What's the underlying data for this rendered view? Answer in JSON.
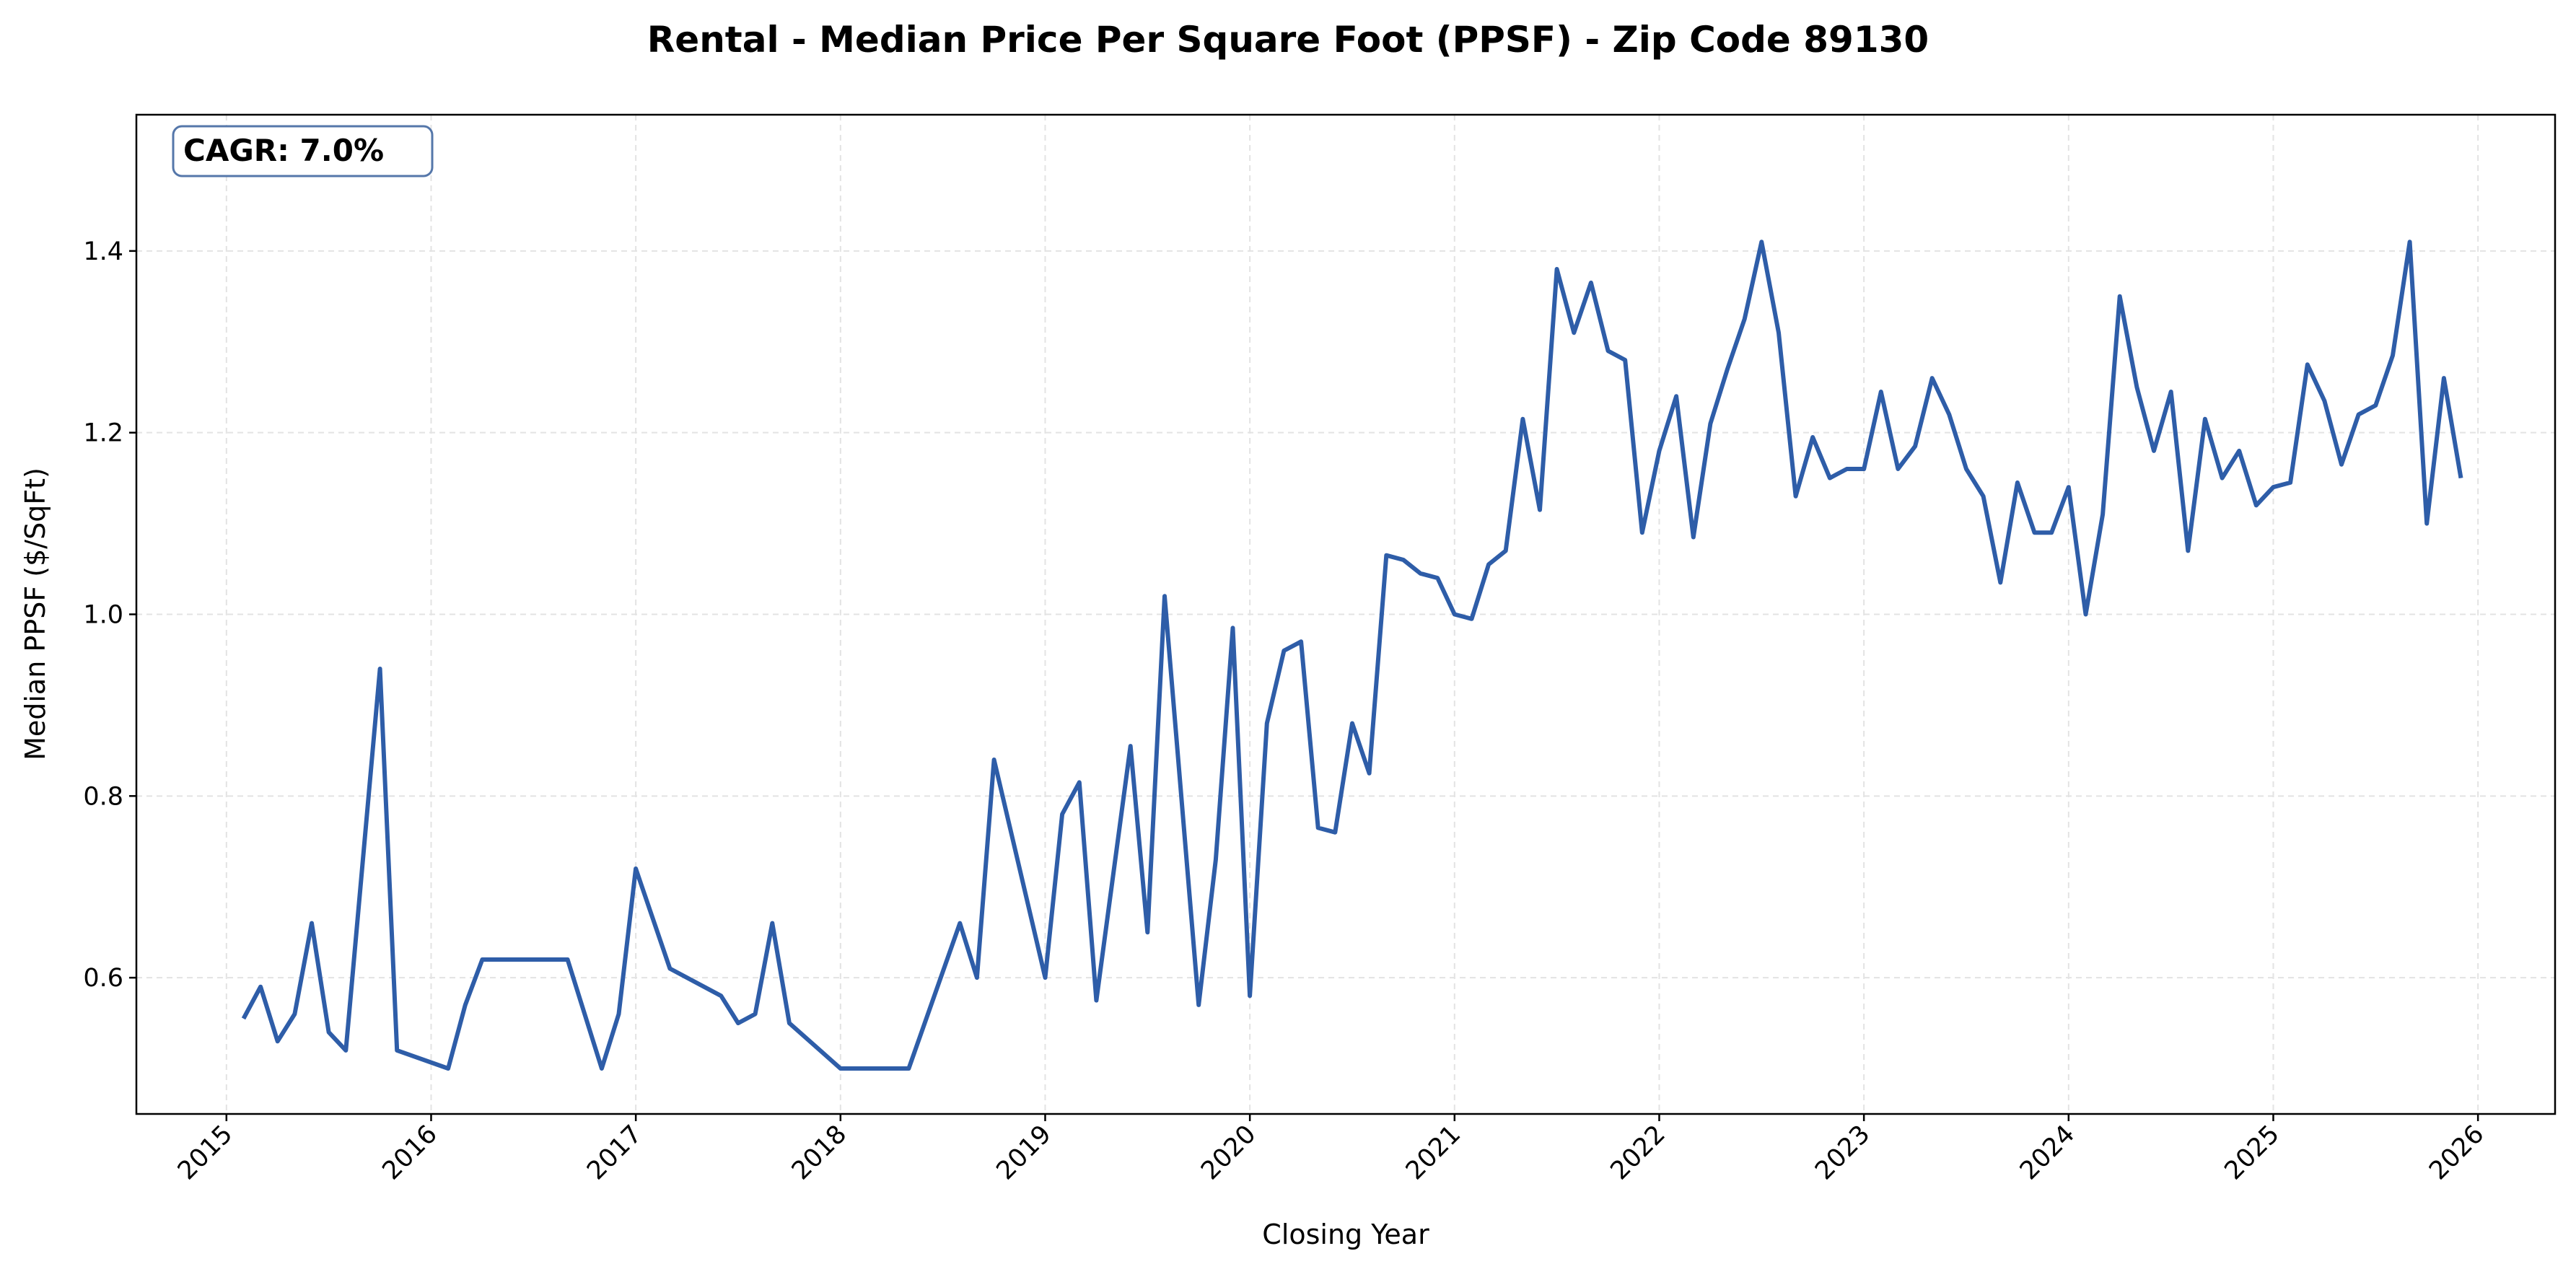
{
  "chart_data": {
    "type": "line",
    "title": "Rental - Median Price Per Square Foot (PPSF) - Zip Code 89130",
    "xlabel": "Closing Year",
    "ylabel": "Median PPSF ($/SqFt)",
    "xlim": [
      "2014-07",
      "2026-06"
    ],
    "ylim": [
      0.45,
      1.55
    ],
    "x_ticks": [
      "2015",
      "2016",
      "2017",
      "2018",
      "2019",
      "2020",
      "2021",
      "2022",
      "2023",
      "2024",
      "2025",
      "2026"
    ],
    "y_ticks": [
      "0.6",
      "0.8",
      "1.0",
      "1.2",
      "1.4"
    ],
    "grid": true,
    "annotation": "CAGR: 7.0%",
    "line_color": "#2e5da8",
    "series": [
      {
        "x": [
          "2015-02",
          "2015-03",
          "2015-04",
          "2015-05",
          "2015-06",
          "2015-07",
          "2015-08",
          "2015-10",
          "2015-11",
          "2016-02",
          "2016-03",
          "2016-04",
          "2016-09",
          "2016-11",
          "2016-12",
          "2017-01",
          "2017-03",
          "2017-06",
          "2017-07",
          "2017-08",
          "2017-09",
          "2017-10",
          "2018-01",
          "2018-05",
          "2018-08",
          "2018-09",
          "2018-10",
          "2019-01",
          "2019-02",
          "2019-03",
          "2019-04",
          "2019-06",
          "2019-07",
          "2019-08",
          "2019-10",
          "2019-11",
          "2019-12",
          "2020-01",
          "2020-02",
          "2020-03",
          "2020-04",
          "2020-05",
          "2020-06",
          "2020-07",
          "2020-08",
          "2020-09",
          "2020-10",
          "2020-11",
          "2020-12",
          "2021-01",
          "2021-02",
          "2021-03",
          "2021-04",
          "2021-05",
          "2021-06",
          "2021-07",
          "2021-08",
          "2021-09",
          "2021-10",
          "2021-11",
          "2021-12",
          "2022-01",
          "2022-02",
          "2022-03",
          "2022-04",
          "2022-05",
          "2022-06",
          "2022-07",
          "2022-08",
          "2022-09",
          "2022-10",
          "2022-11",
          "2022-12",
          "2023-01",
          "2023-02",
          "2023-03",
          "2023-04",
          "2023-05",
          "2023-06",
          "2023-07",
          "2023-08",
          "2023-09",
          "2023-10",
          "2023-11",
          "2023-12",
          "2024-01",
          "2024-02",
          "2024-03",
          "2024-04",
          "2024-05",
          "2024-06",
          "2024-07",
          "2024-08",
          "2024-09",
          "2024-10",
          "2024-11",
          "2024-12",
          "2025-01",
          "2025-02",
          "2025-03",
          "2025-04",
          "2025-05",
          "2025-06",
          "2025-07",
          "2025-08",
          "2025-09",
          "2025-10",
          "2025-11",
          "2025-12"
        ],
        "y": [
          0.555,
          0.59,
          0.53,
          0.56,
          0.66,
          0.54,
          0.52,
          0.94,
          0.52,
          0.5,
          0.57,
          0.62,
          0.62,
          0.5,
          0.56,
          0.72,
          0.61,
          0.58,
          0.55,
          0.56,
          0.66,
          0.55,
          0.5,
          0.5,
          0.66,
          0.6,
          0.84,
          0.6,
          0.78,
          0.815,
          0.575,
          0.855,
          0.65,
          1.02,
          0.57,
          0.73,
          0.985,
          0.58,
          0.88,
          0.96,
          0.97,
          0.765,
          0.76,
          0.88,
          0.825,
          1.065,
          1.06,
          1.045,
          1.04,
          1.0,
          0.995,
          1.055,
          1.07,
          1.215,
          1.115,
          1.38,
          1.31,
          1.365,
          1.29,
          1.28,
          1.09,
          1.18,
          1.24,
          1.085,
          1.21,
          1.27,
          1.325,
          1.41,
          1.31,
          1.13,
          1.195,
          1.15,
          1.16,
          1.16,
          1.245,
          1.16,
          1.185,
          1.26,
          1.22,
          1.16,
          1.13,
          1.035,
          1.145,
          1.09,
          1.09,
          1.14,
          1.0,
          1.11,
          1.35,
          1.25,
          1.18,
          1.245,
          1.07,
          1.215,
          1.15,
          1.18,
          1.12,
          1.14,
          1.145,
          1.275,
          1.235,
          1.165,
          1.22,
          1.23,
          1.285,
          1.41,
          1.1,
          1.26,
          1.15
        ]
      }
    ]
  }
}
